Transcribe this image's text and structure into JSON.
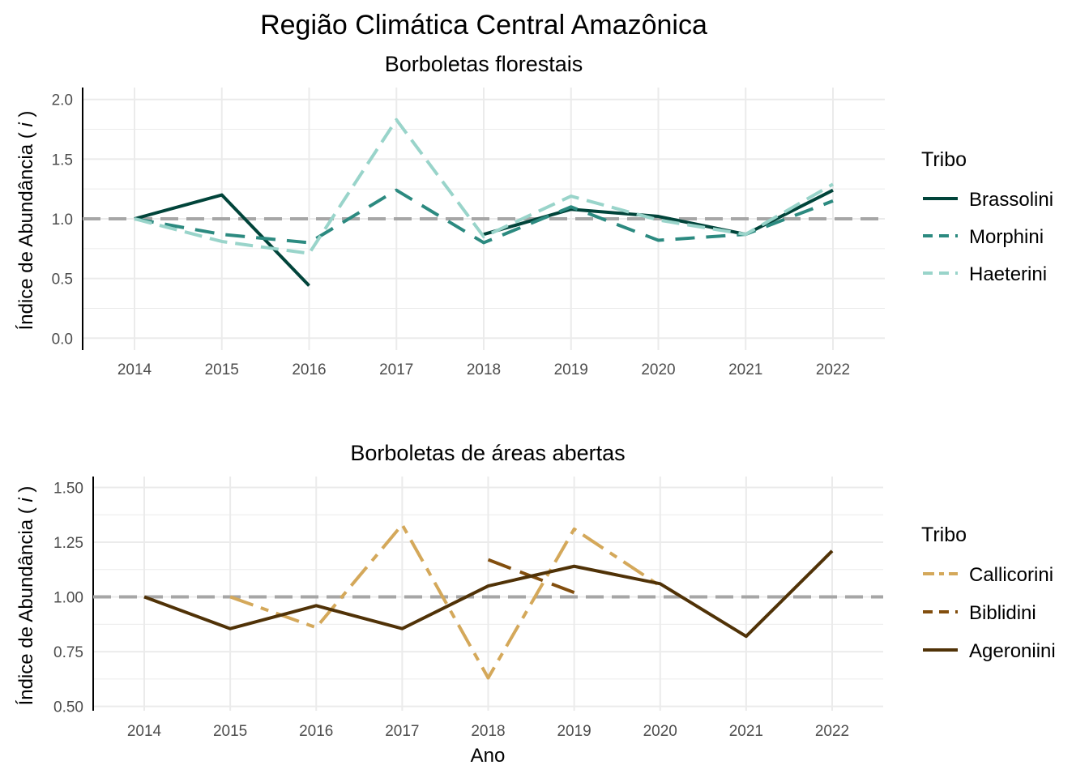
{
  "figure": {
    "title": "Região Climática Central Amazônica",
    "xlabel": "Ano"
  },
  "colors": {
    "grid": "#ebebeb",
    "reference_line": "#a6a6a6",
    "axis": "#000000"
  },
  "chart_data": [
    {
      "type": "line",
      "title": "Borboletas florestais",
      "ylabel": "Índice de Abundância ( i )",
      "ylabel_main": "Índice de Abundância ( ",
      "ylabel_italic": "i",
      "ylabel_close": " )",
      "xlabel": "",
      "categories": [
        "2014",
        "2015",
        "2016",
        "2017",
        "2018",
        "2019",
        "2020",
        "2021",
        "2022"
      ],
      "ylim": [
        -0.1,
        2.1
      ],
      "yticks": [
        0.0,
        0.5,
        1.0,
        1.5,
        2.0
      ],
      "ytick_labels": [
        "0.0",
        "0.5",
        "1.0",
        "1.5",
        "2.0"
      ],
      "reference_y": 1.0,
      "grid": true,
      "legend_title": "Tribo",
      "legend_position": "right",
      "series": [
        {
          "name": "Brassolini",
          "color": "#01443a",
          "dash": "solid",
          "values": [
            1.0,
            1.2,
            0.44,
            null,
            0.87,
            1.08,
            1.02,
            0.87,
            1.24
          ]
        },
        {
          "name": "Morphini",
          "color": "#2c8a80",
          "dash": "dashed",
          "values": [
            1.0,
            0.87,
            0.8,
            1.24,
            0.8,
            1.1,
            0.82,
            0.87,
            1.15
          ]
        },
        {
          "name": "Haeterini",
          "color": "#99d4ca",
          "dash": "dashed-long",
          "values": [
            1.0,
            0.81,
            0.71,
            1.83,
            0.85,
            1.19,
            0.99,
            0.87,
            1.29
          ]
        }
      ]
    },
    {
      "type": "line",
      "title": "Borboletas de áreas abertas",
      "ylabel": "Índice de Abundância ( i )",
      "ylabel_main": "Índice de Abundância ( ",
      "ylabel_italic": "i",
      "ylabel_close": " )",
      "xlabel": "Ano",
      "categories": [
        "2014",
        "2015",
        "2016",
        "2017",
        "2018",
        "2019",
        "2020",
        "2021",
        "2022"
      ],
      "ylim": [
        0.48,
        1.55
      ],
      "yticks": [
        0.5,
        0.75,
        1.0,
        1.25,
        1.5
      ],
      "ytick_labels": [
        "0.50",
        "0.75",
        "1.00",
        "1.25",
        "1.50"
      ],
      "reference_y": 1.0,
      "grid": true,
      "legend_title": "Tribo",
      "legend_position": "right",
      "series": [
        {
          "name": "Callicorini",
          "color": "#d4a85a",
          "dash": "dotdash",
          "values": [
            null,
            1.0,
            0.86,
            1.33,
            0.63,
            1.31,
            1.05,
            null,
            null
          ]
        },
        {
          "name": "Biblidini",
          "color": "#824e0e",
          "dash": "longdash",
          "values": [
            null,
            null,
            null,
            null,
            1.17,
            1.02,
            null,
            null,
            null
          ]
        },
        {
          "name": "Ageroniini",
          "color": "#503207",
          "dash": "solid",
          "values": [
            1.0,
            0.855,
            0.96,
            0.855,
            1.05,
            1.14,
            1.06,
            0.82,
            1.21
          ]
        }
      ]
    }
  ]
}
